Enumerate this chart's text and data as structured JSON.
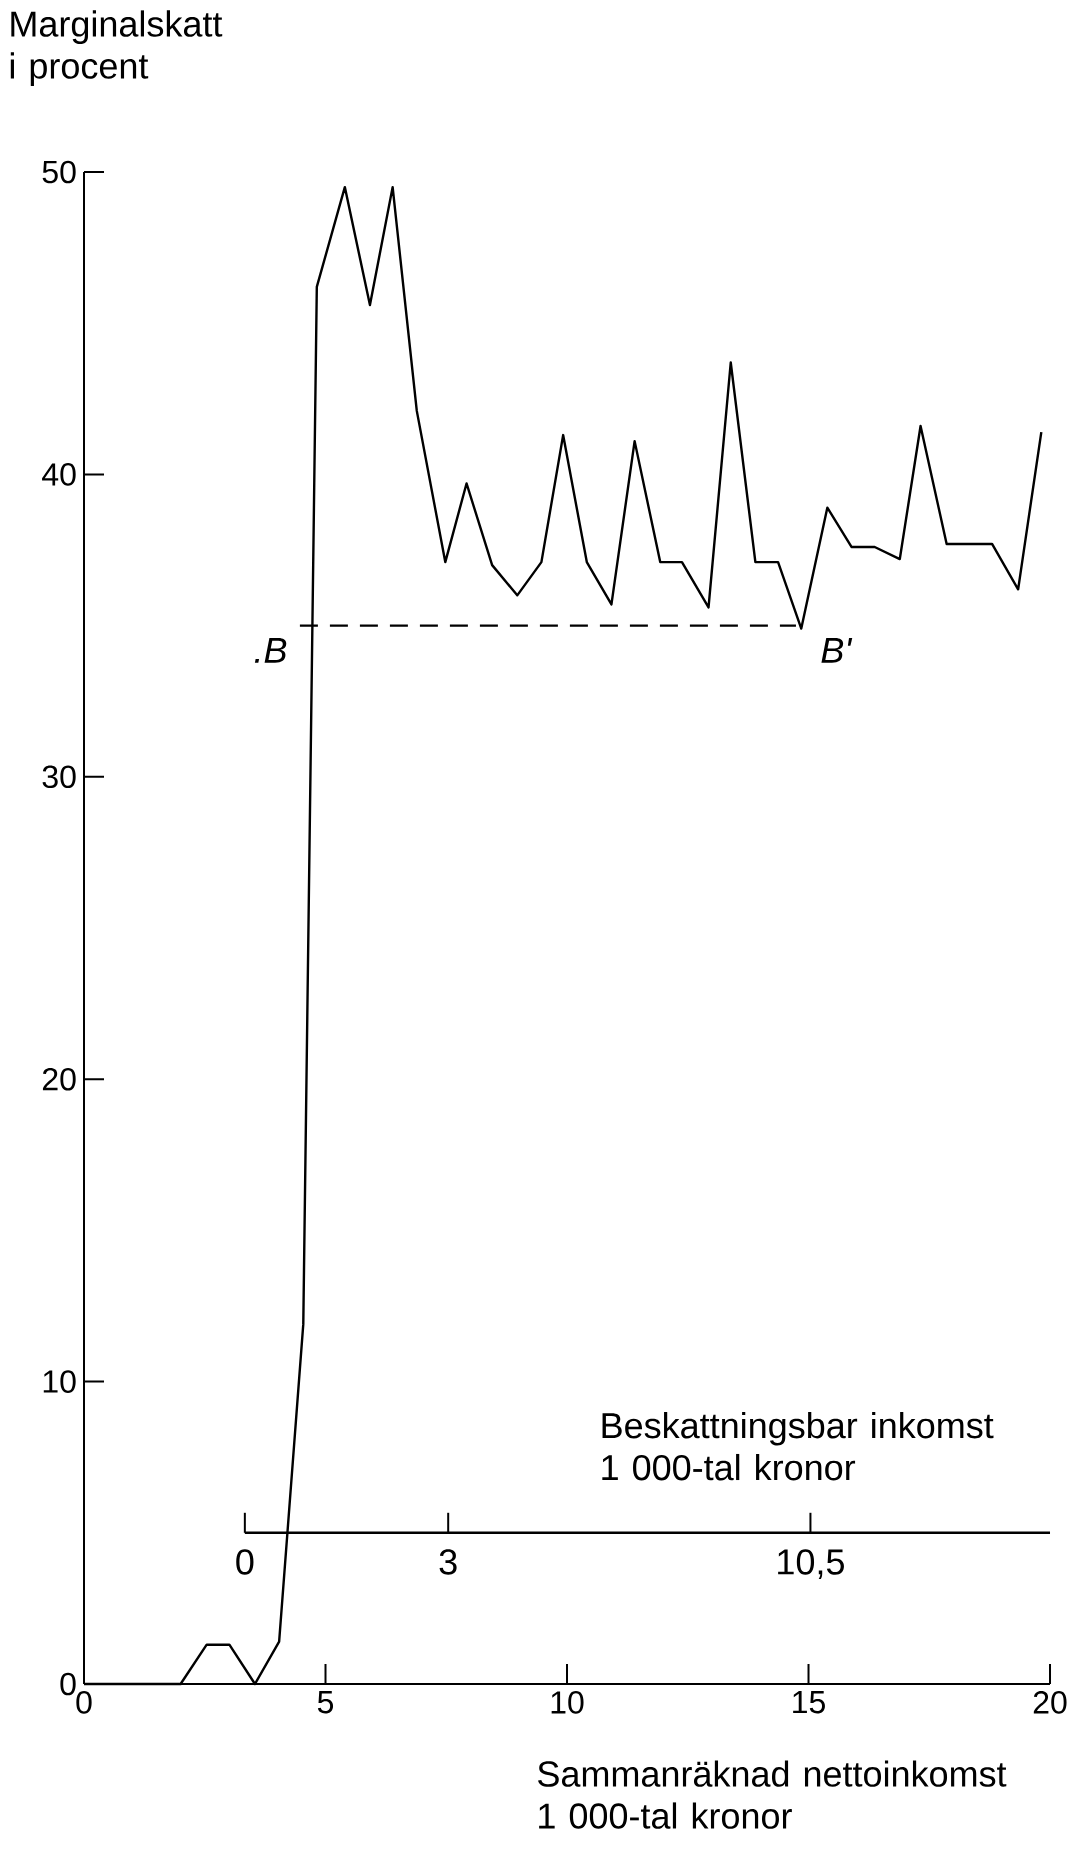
{
  "chart_data": {
    "type": "line",
    "xlabel": "Sammanräknad nettoinkomst 1 000-tal kronor",
    "ylabel": "Marginalskatt i procent",
    "xlim": [
      0,
      20
    ],
    "ylim": [
      0,
      50
    ],
    "xticks": [
      0,
      5,
      10,
      15,
      20
    ],
    "yticks": [
      0,
      10,
      20,
      30,
      40,
      50
    ],
    "marker": "none",
    "series": [
      {
        "color": "#000000",
        "line_style": "solid",
        "x": [
          0,
          2.0,
          2.54,
          3.01,
          3.54,
          4.04,
          4.54,
          4.82,
          5.4,
          5.92,
          6.39,
          6.89,
          7.48,
          7.92,
          8.45,
          8.97,
          9.47,
          9.92,
          10.41,
          10.92,
          11.4,
          11.93,
          12.38,
          12.93,
          13.39,
          13.9,
          14.37,
          14.85,
          15.39,
          15.89,
          16.37,
          16.89,
          17.32,
          17.86,
          18.8,
          19.34,
          19.82
        ],
        "values": [
          0,
          0,
          1.3,
          1.3,
          0,
          1.4,
          11.9,
          46.2,
          49.5,
          45.6,
          49.5,
          42.1,
          37.1,
          39.7,
          37.0,
          36.0,
          37.1,
          41.3,
          37.1,
          35.7,
          41.1,
          37.1,
          37.1,
          35.6,
          43.7,
          37.1,
          37.1,
          34.9,
          38.9,
          37.6,
          37.6,
          37.2,
          41.6,
          37.7,
          37.7,
          36.2,
          41.4
        ]
      },
      {
        "color": "#000000",
        "line_style": "dashed",
        "x": [
          4.47,
          14.74
        ],
        "values": [
          35,
          35
        ]
      },
      {
        "color": "#000000",
        "line_style": "solid",
        "x": [
          3.33,
          20
        ],
        "values": [
          5,
          5
        ]
      }
    ],
    "annotations": [
      {
        "text": "0",
        "x": 3.33,
        "y": 5
      },
      {
        "text": "3",
        "x": 7.54,
        "y": 5
      },
      {
        "text": "10,5",
        "x": 15.04,
        "y": 5
      },
      "Beskattningsbar inkomst 1 000-tal kronor",
      {
        "text": ".B",
        "x": 4.47,
        "y": 35
      },
      {
        "text": "B'",
        "x": 14.74,
        "y": 35
      }
    ]
  }
}
